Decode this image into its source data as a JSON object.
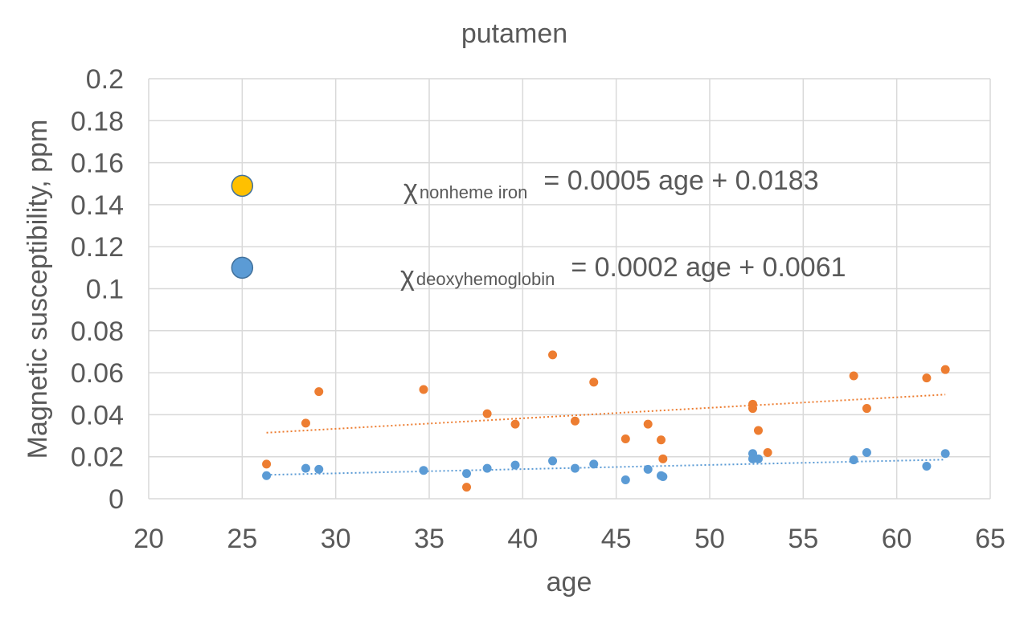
{
  "chart_data": {
    "type": "scatter",
    "title": "putamen",
    "xlabel": "age",
    "ylabel": "Magnetic susceptibility, ppm",
    "xlim": [
      20,
      65
    ],
    "ylim": [
      0,
      0.2
    ],
    "x_ticks": [
      20,
      25,
      30,
      35,
      40,
      45,
      50,
      55,
      60,
      65
    ],
    "y_ticks": [
      0,
      0.02,
      0.04,
      0.06,
      0.08,
      0.1,
      0.12,
      0.14,
      0.16,
      0.18,
      0.2
    ],
    "y_tick_labels": [
      "0",
      "0.02",
      "0.04",
      "0.06",
      "0.08",
      "0.1",
      "0.12",
      "0.14",
      "0.16",
      "0.18",
      "0.2"
    ],
    "grid": true,
    "series": [
      {
        "name": "nonheme iron",
        "color": "#ED7D31",
        "points": [
          [
            26.3,
            0.0165
          ],
          [
            28.4,
            0.036
          ],
          [
            29.1,
            0.051
          ],
          [
            34.7,
            0.052
          ],
          [
            37.0,
            0.0055
          ],
          [
            38.1,
            0.0405
          ],
          [
            39.6,
            0.0355
          ],
          [
            41.6,
            0.0685
          ],
          [
            42.8,
            0.037
          ],
          [
            43.8,
            0.0555
          ],
          [
            45.5,
            0.0285
          ],
          [
            46.7,
            0.0355
          ],
          [
            47.4,
            0.028
          ],
          [
            47.5,
            0.019
          ],
          [
            52.3,
            0.045
          ],
          [
            52.3,
            0.043
          ],
          [
            52.6,
            0.0325
          ],
          [
            53.1,
            0.022
          ],
          [
            57.7,
            0.0585
          ],
          [
            58.4,
            0.043
          ],
          [
            61.6,
            0.0575
          ],
          [
            62.6,
            0.0615
          ]
        ],
        "trend": {
          "slope": 0.0005,
          "intercept": 0.0183,
          "x_range": [
            26.3,
            62.6
          ]
        }
      },
      {
        "name": "deoxyhemoglobin",
        "color": "#5B9BD5",
        "points": [
          [
            26.3,
            0.011
          ],
          [
            28.4,
            0.0145
          ],
          [
            29.1,
            0.014
          ],
          [
            34.7,
            0.0135
          ],
          [
            37.0,
            0.012
          ],
          [
            38.1,
            0.0145
          ],
          [
            39.6,
            0.016
          ],
          [
            41.6,
            0.018
          ],
          [
            42.8,
            0.0145
          ],
          [
            43.8,
            0.0165
          ],
          [
            45.5,
            0.009
          ],
          [
            46.7,
            0.014
          ],
          [
            47.4,
            0.011
          ],
          [
            47.5,
            0.0105
          ],
          [
            52.3,
            0.0215
          ],
          [
            52.3,
            0.019
          ],
          [
            52.6,
            0.019
          ],
          [
            57.7,
            0.0185
          ],
          [
            58.4,
            0.022
          ],
          [
            61.6,
            0.0155
          ],
          [
            62.6,
            0.0215
          ]
        ],
        "trend": {
          "slope": 0.0002,
          "intercept": 0.0061,
          "x_range": [
            26.3,
            62.6
          ]
        }
      }
    ],
    "legend_markers": [
      {
        "name": "nonheme-iron-marker",
        "color": "#FFC000",
        "x": 25,
        "y": 0.149
      },
      {
        "name": "deoxyhemoglobin-marker",
        "color": "#5B9BD5",
        "x": 25,
        "y": 0.11
      }
    ],
    "annotations": [
      {
        "chi": "χ",
        "sub": "nonheme iron",
        "equation": "= 0.0005 age + 0.0183"
      },
      {
        "chi": "χ",
        "sub": "deoxyhemoglobin",
        "equation": "= 0.0002 age + 0.0061"
      }
    ]
  }
}
